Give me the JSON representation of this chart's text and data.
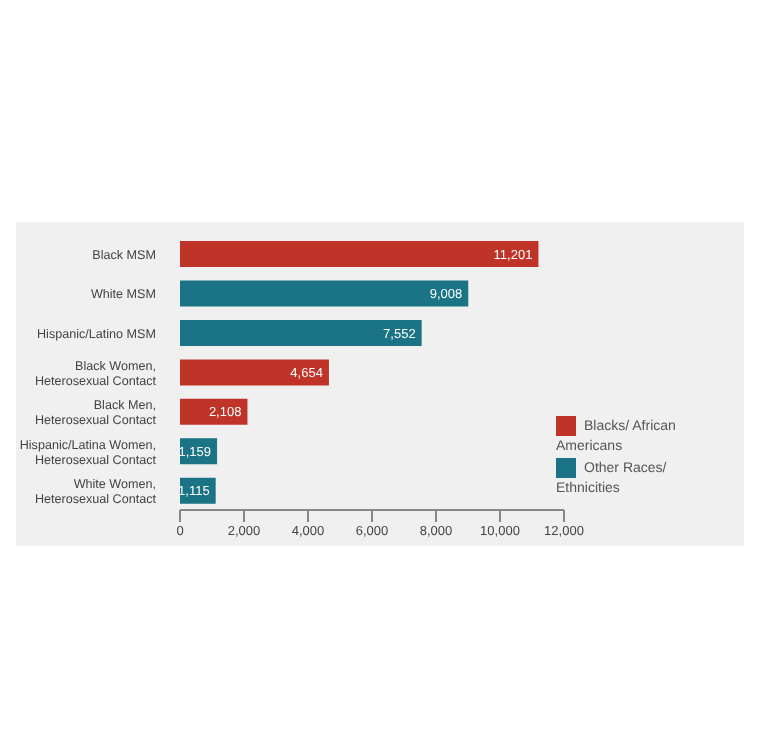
{
  "chart_data": {
    "type": "bar",
    "orientation": "horizontal",
    "stacked": true,
    "categories": [
      "Black MSM",
      "White MSM",
      "Hispanic/Latino MSM",
      "Black Women, Heterosexual Contact",
      "Black Men, Heterosexual Contact",
      "Hispanic/Latina Women, Heterosexual Contact",
      "White Women, Heterosexual Contact"
    ],
    "series": [
      {
        "name": "Blacks/ African Americans",
        "color": "#bf3328",
        "values": [
          11201,
          null,
          null,
          4654,
          2108,
          null,
          null
        ],
        "value_labels": [
          "11,201",
          null,
          null,
          "4,654",
          "2,108",
          null,
          null
        ]
      },
      {
        "name": "Other Races/ Ethnicities",
        "color": "#1a7485",
        "values": [
          null,
          9008,
          7552,
          null,
          null,
          1159,
          1115
        ],
        "value_labels": [
          null,
          "9,008",
          "7,552",
          null,
          null,
          "1,159",
          "1,115"
        ]
      }
    ],
    "xlim": [
      0,
      12000
    ],
    "xticks": [
      {
        "value": 0,
        "label": "0"
      },
      {
        "value": 2000,
        "label": "2,000"
      },
      {
        "value": 4000,
        "label": "4,000"
      },
      {
        "value": 6000,
        "label": "6,000"
      },
      {
        "value": 8000,
        "label": "8,000"
      },
      {
        "value": 10000,
        "label": "10,000"
      },
      {
        "value": 12000,
        "label": "12,000"
      }
    ],
    "legend": "right"
  }
}
